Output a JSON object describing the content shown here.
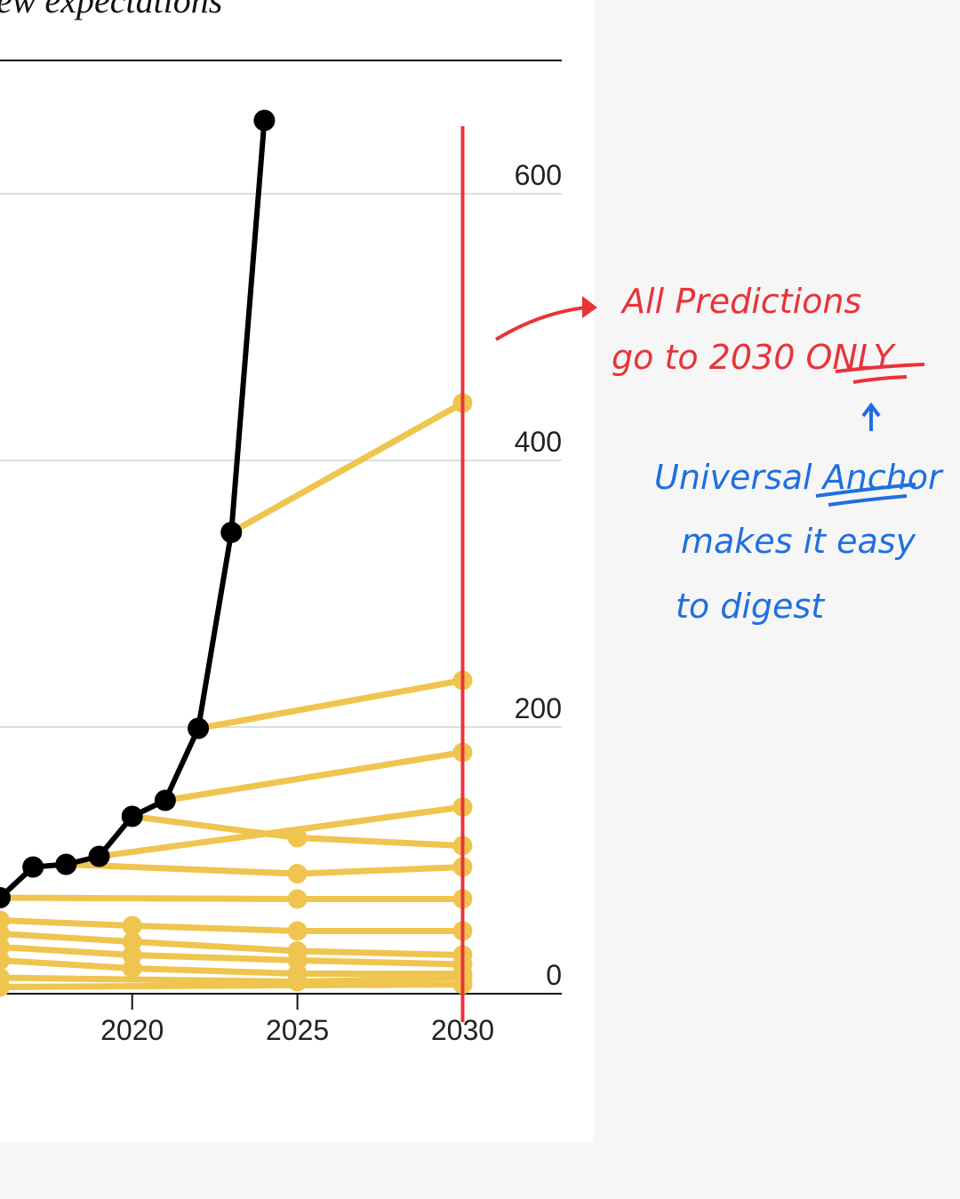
{
  "chart_data": {
    "type": "line",
    "title": "ew expectations",
    "xlim": [
      2016,
      2033
    ],
    "xticks": [
      2020,
      2025,
      2030
    ],
    "ylim": [
      0,
      700
    ],
    "yticks": [
      0,
      200,
      400,
      600
    ],
    "grid": true,
    "actual": {
      "color": "#000000",
      "x": [
        2016,
        2017,
        2018,
        2019,
        2020,
        2021,
        2022,
        2023,
        2024
      ],
      "values": [
        72,
        95,
        97,
        103,
        133,
        145,
        199,
        346,
        655
      ]
    },
    "prediction_color": "#efc54f",
    "predictions": [
      {
        "x": [
          2023,
          2030
        ],
        "values": [
          346,
          443
        ]
      },
      {
        "x": [
          2022,
          2030
        ],
        "values": [
          199,
          235
        ]
      },
      {
        "x": [
          2021,
          2030
        ],
        "values": [
          145,
          181
        ]
      },
      {
        "x": [
          2020,
          2025,
          2030
        ],
        "values": [
          133,
          117,
          111
        ]
      },
      {
        "x": [
          2019,
          2030
        ],
        "values": [
          103,
          140
        ]
      },
      {
        "x": [
          2018,
          2025,
          2030
        ],
        "values": [
          97,
          90,
          95
        ]
      },
      {
        "x": [
          2016,
          2025,
          2030
        ],
        "values": [
          72,
          71,
          71
        ]
      },
      {
        "x": [
          2016,
          2020,
          2025,
          2030
        ],
        "values": [
          55,
          51,
          47,
          47
        ]
      },
      {
        "x": [
          2016,
          2020,
          2025,
          2030
        ],
        "values": [
          45,
          39,
          32,
          29
        ]
      },
      {
        "x": [
          2016,
          2020,
          2025,
          2030
        ],
        "values": [
          35,
          29,
          25,
          22
        ]
      },
      {
        "x": [
          2016,
          2020,
          2025,
          2030
        ],
        "values": [
          25,
          19,
          15,
          15
        ]
      },
      {
        "x": [
          2016,
          2025,
          2030
        ],
        "values": [
          12,
          9,
          12
        ]
      },
      {
        "x": [
          2016,
          2030
        ],
        "values": [
          5,
          7
        ]
      }
    ],
    "highlight_x": 2030,
    "highlight_color": "#e8333a",
    "annotations": [
      {
        "lines": [
          "All Predictions",
          "go to 2030 ONLY"
        ],
        "color": "#e8333a"
      },
      {
        "lines": [
          "Universal Anchor",
          "makes it easy",
          "to digest"
        ],
        "color": "#1f6fe0"
      }
    ]
  }
}
